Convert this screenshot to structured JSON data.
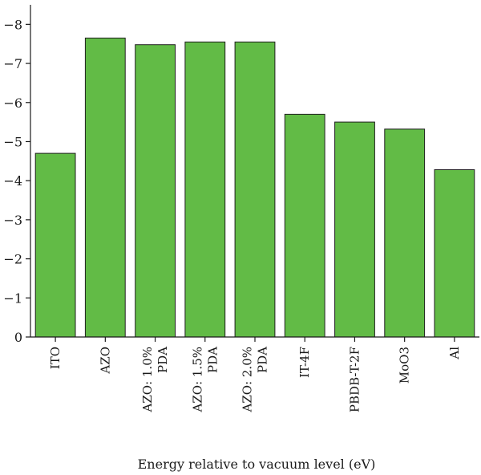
{
  "chart_data": {
    "type": "bar",
    "title": "",
    "xlabel": "Energy relative to vacuum level (eV)",
    "ylabel": "",
    "categories": [
      [
        "ITO"
      ],
      [
        "AZO"
      ],
      [
        "AZO: 1.0%",
        "PDA"
      ],
      [
        "AZO: 1.5%",
        "PDA"
      ],
      [
        "AZO: 2.0%",
        "PDA"
      ],
      [
        "IT-4F"
      ],
      [
        "PBDB-T-2F"
      ],
      [
        "MoO3"
      ],
      [
        "Al"
      ]
    ],
    "values": [
      -4.7,
      -7.65,
      -7.48,
      -7.55,
      -7.55,
      -5.7,
      -5.5,
      -5.32,
      -4.28
    ],
    "yticks": [
      0,
      -1,
      -2,
      -3,
      -4,
      -5,
      -6,
      -7,
      -8
    ],
    "ylim": [
      0,
      -8.5
    ],
    "y_axis_direction": "negative values upward",
    "grid": false,
    "legend": "none",
    "colors": {
      "bar_fill": "#62bb46",
      "bar_stroke": "#1f1f1f",
      "axis": "#1a1a1a"
    }
  }
}
